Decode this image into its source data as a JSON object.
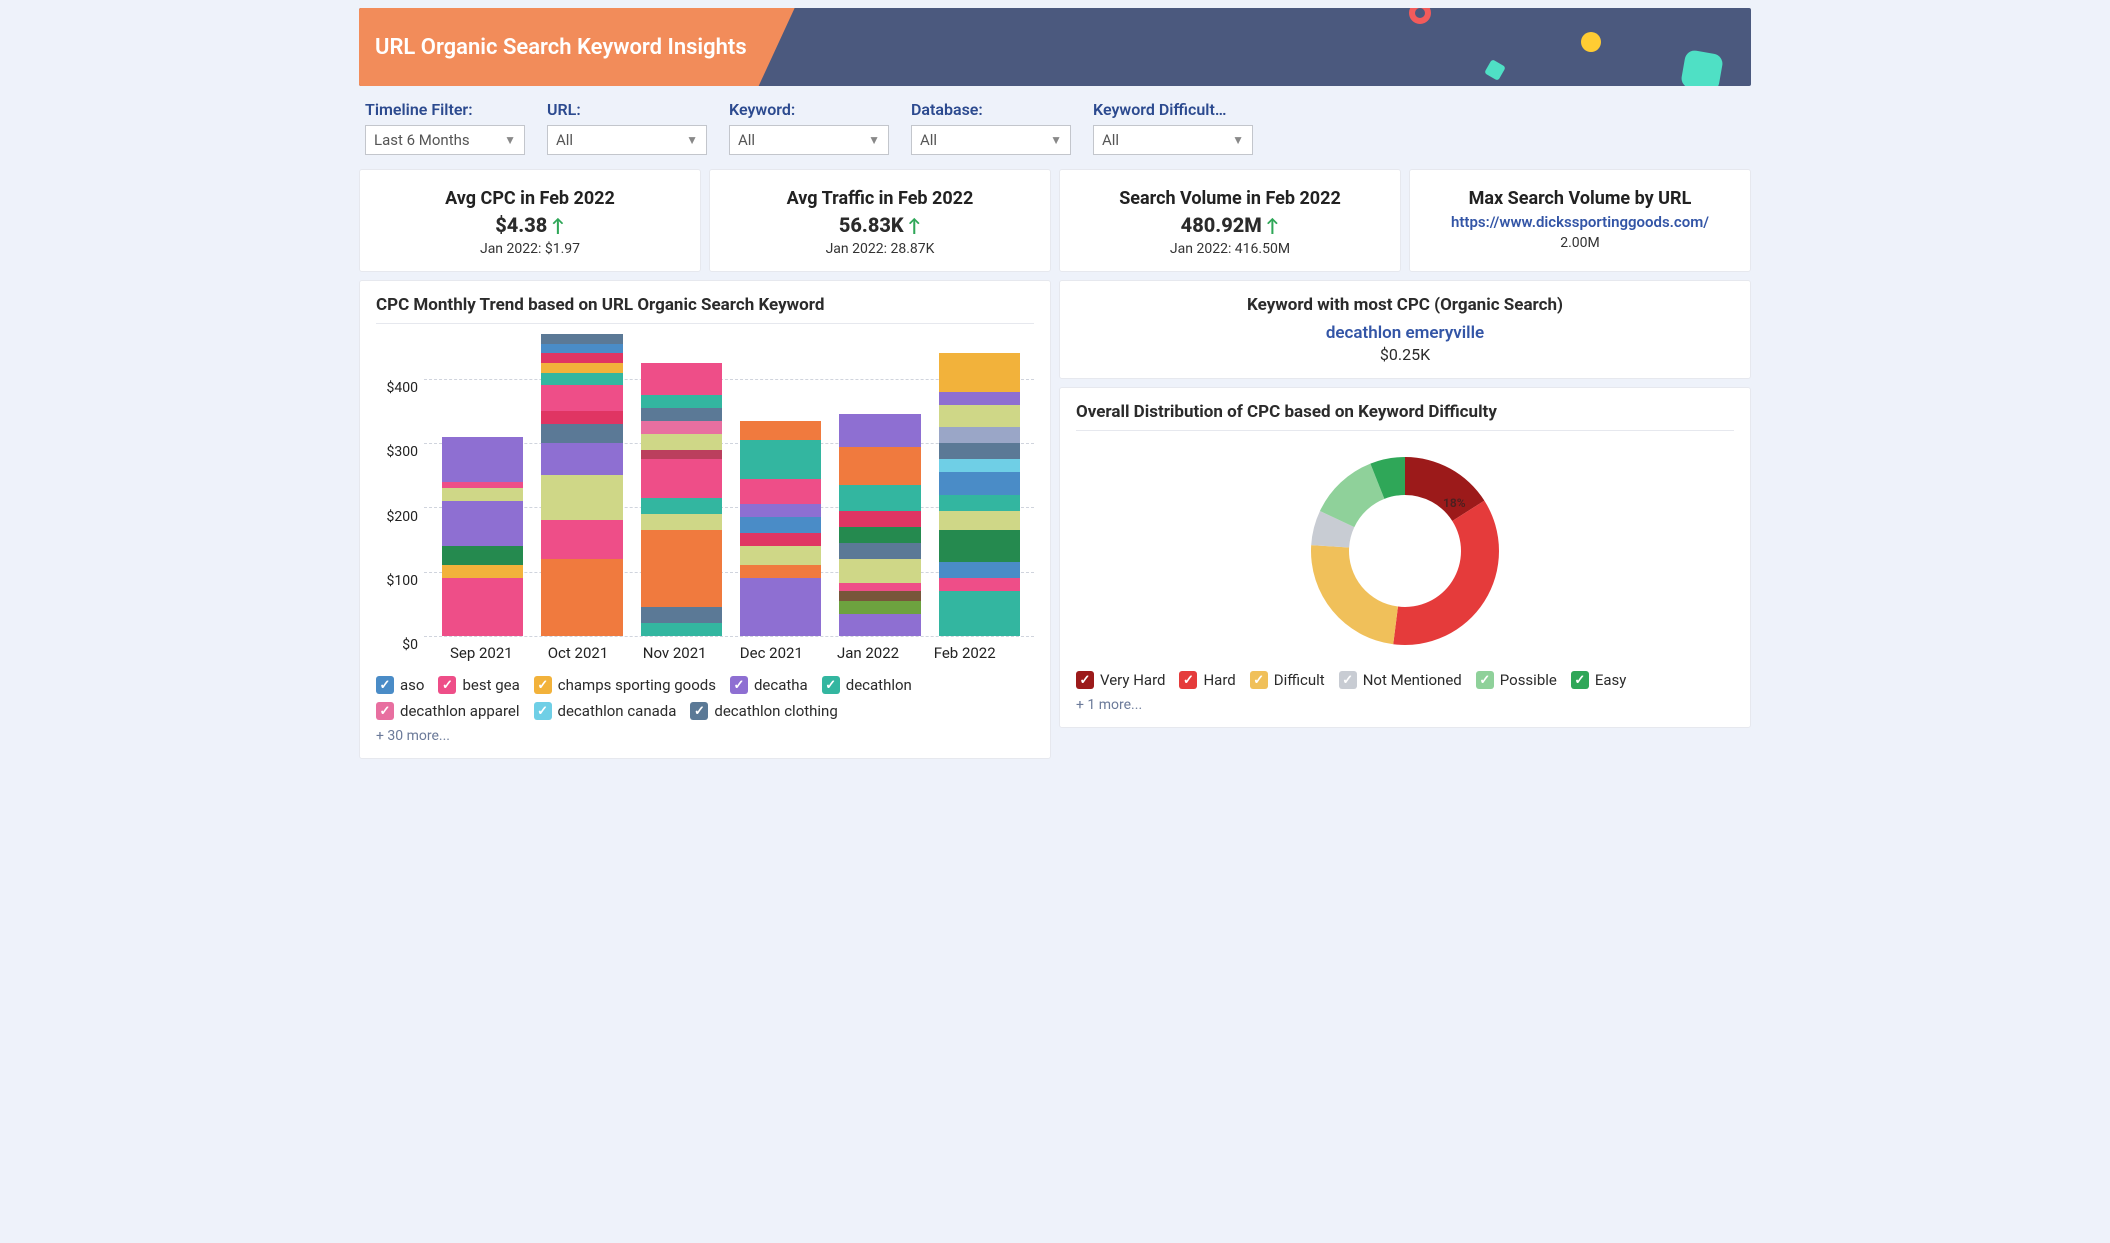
{
  "header": {
    "title": "URL Organic Search Keyword Insights",
    "banner_bg": "#4b597e",
    "title_bg": "#f28c5a",
    "title_color": "#ffffff"
  },
  "filters": [
    {
      "label": "Timeline Filter:",
      "value": "Last 6 Months"
    },
    {
      "label": "URL:",
      "value": "All"
    },
    {
      "label": "Keyword:",
      "value": "All"
    },
    {
      "label": "Database:",
      "value": "All"
    },
    {
      "label": "Keyword Difficult…",
      "value": "All"
    }
  ],
  "kpis": [
    {
      "title": "Avg CPC in Feb 2022",
      "value": "$4.38",
      "trend": "up",
      "sub": "Jan 2022: $1.97"
    },
    {
      "title": "Avg Traffic in Feb 2022",
      "value": "56.83K",
      "trend": "up",
      "sub": "Jan 2022: 28.87K"
    },
    {
      "title": "Search Volume in Feb 2022",
      "value": "480.92M",
      "trend": "up",
      "sub": "Jan 2022: 416.50M"
    },
    {
      "title": "Max Search Volume by URL",
      "link": "https://www.dickssportinggoods.com/",
      "sub": "2.00M"
    }
  ],
  "cpc_chart": {
    "title": "CPC Monthly Trend based on URL Organic Search Keyword",
    "type": "stacked-bar",
    "y_ticks": [
      0,
      100,
      200,
      300,
      400
    ],
    "y_tick_labels": [
      "$0",
      "$100",
      "$200",
      "$300",
      "$400"
    ],
    "ylim": [
      0,
      470
    ],
    "grid_color": "#d0d4dd",
    "months": [
      "Sep 2021",
      "Oct 2021",
      "Nov 2021",
      "Dec 2021",
      "Jan 2022",
      "Feb 2022"
    ],
    "bars": [
      {
        "total": 310,
        "segments": [
          {
            "c": "#ee4e88",
            "v": 90
          },
          {
            "c": "#f2b23b",
            "v": 20
          },
          {
            "c": "#258a4f",
            "v": 30
          },
          {
            "c": "#8e6fd2",
            "v": 70
          },
          {
            "c": "#cfd787",
            "v": 20
          },
          {
            "c": "#ee4e88",
            "v": 10
          },
          {
            "c": "#8e6fd2",
            "v": 70
          }
        ]
      },
      {
        "total": 470,
        "segments": [
          {
            "c": "#f07a3e",
            "v": 120
          },
          {
            "c": "#ee4e88",
            "v": 60
          },
          {
            "c": "#cfd787",
            "v": 70
          },
          {
            "c": "#8e6fd2",
            "v": 50
          },
          {
            "c": "#5b7996",
            "v": 30
          },
          {
            "c": "#e03563",
            "v": 20
          },
          {
            "c": "#ee4e88",
            "v": 40
          },
          {
            "c": "#33b6a0",
            "v": 20
          },
          {
            "c": "#f2b23b",
            "v": 15
          },
          {
            "c": "#e03563",
            "v": 15
          },
          {
            "c": "#4a8cc7",
            "v": 15
          },
          {
            "c": "#5b7996",
            "v": 15
          }
        ]
      },
      {
        "total": 425,
        "segments": [
          {
            "c": "#33b6a0",
            "v": 20
          },
          {
            "c": "#5b7996",
            "v": 25
          },
          {
            "c": "#f07a3e",
            "v": 120
          },
          {
            "c": "#cfd787",
            "v": 25
          },
          {
            "c": "#33b6a0",
            "v": 25
          },
          {
            "c": "#ee4e88",
            "v": 60
          },
          {
            "c": "#bb3f5d",
            "v": 15
          },
          {
            "c": "#cfd787",
            "v": 25
          },
          {
            "c": "#e86fa0",
            "v": 20
          },
          {
            "c": "#5b7996",
            "v": 20
          },
          {
            "c": "#33b6a0",
            "v": 20
          },
          {
            "c": "#ee4e88",
            "v": 50
          }
        ]
      },
      {
        "total": 335,
        "segments": [
          {
            "c": "#8e6fd2",
            "v": 90
          },
          {
            "c": "#f07a3e",
            "v": 20
          },
          {
            "c": "#cfd787",
            "v": 30
          },
          {
            "c": "#e03563",
            "v": 20
          },
          {
            "c": "#4a8cc7",
            "v": 25
          },
          {
            "c": "#8e6fd2",
            "v": 20
          },
          {
            "c": "#ee4e88",
            "v": 40
          },
          {
            "c": "#33b6a0",
            "v": 60
          },
          {
            "c": "#f07a3e",
            "v": 30
          }
        ]
      },
      {
        "total": 345,
        "segments": [
          {
            "c": "#8e6fd2",
            "v": 35
          },
          {
            "c": "#6da23f",
            "v": 20
          },
          {
            "c": "#78563a",
            "v": 15
          },
          {
            "c": "#ee4e88",
            "v": 12
          },
          {
            "c": "#cfd787",
            "v": 38
          },
          {
            "c": "#5b7996",
            "v": 25
          },
          {
            "c": "#258a4f",
            "v": 25
          },
          {
            "c": "#e03563",
            "v": 25
          },
          {
            "c": "#33b6a0",
            "v": 40
          },
          {
            "c": "#f07a3e",
            "v": 60
          },
          {
            "c": "#8e6fd2",
            "v": 50
          }
        ]
      },
      {
        "total": 440,
        "segments": [
          {
            "c": "#33b6a0",
            "v": 70
          },
          {
            "c": "#ee4e88",
            "v": 20
          },
          {
            "c": "#4a8cc7",
            "v": 25
          },
          {
            "c": "#258a4f",
            "v": 50
          },
          {
            "c": "#cfd787",
            "v": 30
          },
          {
            "c": "#33b6a0",
            "v": 25
          },
          {
            "c": "#4a8cc7",
            "v": 35
          },
          {
            "c": "#6fcfe6",
            "v": 20
          },
          {
            "c": "#5b7996",
            "v": 25
          },
          {
            "c": "#9aa6c7",
            "v": 25
          },
          {
            "c": "#cfd787",
            "v": 35
          },
          {
            "c": "#8e6fd2",
            "v": 20
          },
          {
            "c": "#f2b23b",
            "v": 60
          }
        ]
      }
    ],
    "legend": [
      {
        "color": "#4a8cc7",
        "label": "aso"
      },
      {
        "color": "#ee4e88",
        "label": "best gea"
      },
      {
        "color": "#f2b23b",
        "label": "champs sporting goods"
      },
      {
        "color": "#8e6fd2",
        "label": "decatha"
      },
      {
        "color": "#33b6a0",
        "label": "decathlon"
      },
      {
        "color": "#e86fa0",
        "label": "decathlon apparel"
      },
      {
        "color": "#6fcfe6",
        "label": "decathlon canada"
      },
      {
        "color": "#5b7996",
        "label": "decathlon clothing"
      }
    ],
    "legend_more": "+ 30 more..."
  },
  "most_cpc": {
    "title": "Keyword with most CPC (Organic Search)",
    "keyword": "decathlon emeryville",
    "value": "$0.25K"
  },
  "donut": {
    "title": "Overall Distribution of CPC based on Keyword Difficulty",
    "type": "donut",
    "center_label": "18%",
    "slices": [
      {
        "label": "Very Hard",
        "color": "#9c1a1a",
        "pct": 16
      },
      {
        "label": "Hard",
        "color": "#e53b3b",
        "pct": 36
      },
      {
        "label": "Difficult",
        "color": "#f0c05a",
        "pct": 24
      },
      {
        "label": "Not Mentioned",
        "color": "#c8ccd3",
        "pct": 6
      },
      {
        "label": "Possible",
        "color": "#8fd19a",
        "pct": 12
      },
      {
        "label": "Easy",
        "color": "#2fa758",
        "pct": 6
      }
    ],
    "legend": [
      {
        "color": "#9c1a1a",
        "label": "Very Hard"
      },
      {
        "color": "#e53b3b",
        "label": "Hard"
      },
      {
        "color": "#f0c05a",
        "label": "Difficult"
      },
      {
        "color": "#c8ccd3",
        "label": "Not Mentioned"
      },
      {
        "color": "#8fd19a",
        "label": "Possible"
      },
      {
        "color": "#2fa758",
        "label": "Easy"
      }
    ],
    "legend_more": "+ 1 more...",
    "inner_radius": 56,
    "outer_radius": 94
  }
}
